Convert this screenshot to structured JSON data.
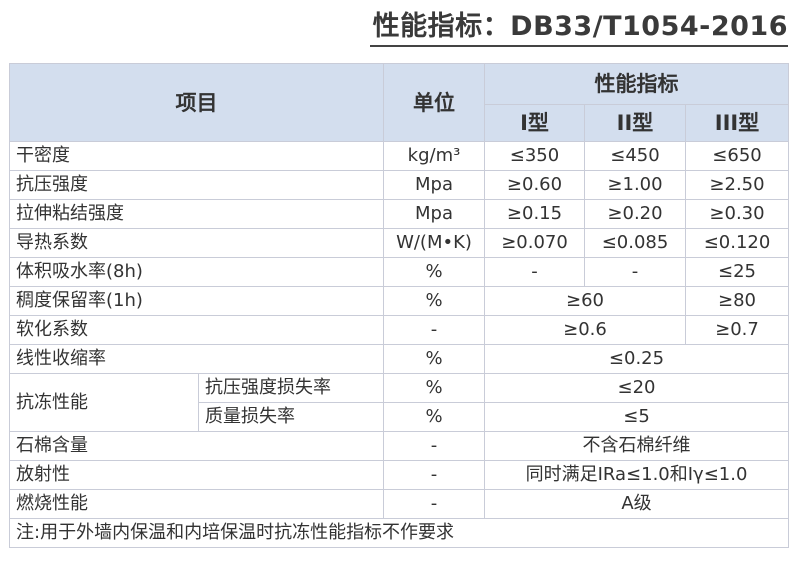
{
  "title": "性能指标：DB33/T1054-2016",
  "header": {
    "item": "项目",
    "unit": "单位",
    "perf": "性能指标",
    "types": [
      "I型",
      "II型",
      "III型"
    ]
  },
  "rows": [
    {
      "item": "干密度",
      "unit": "kg/m³",
      "vals": [
        "≤350",
        "≤450",
        "≤650"
      ]
    },
    {
      "item": "抗压强度",
      "unit": "Mpa",
      "vals": [
        "≥0.60",
        "≥1.00",
        "≥2.50"
      ]
    },
    {
      "item": "拉伸粘结强度",
      "unit": "Mpa",
      "vals": [
        "≥0.15",
        "≥0.20",
        "≥0.30"
      ]
    },
    {
      "item": "导热系数",
      "unit": "W/(M•K)",
      "vals": [
        "≥0.070",
        "≤0.085",
        "≤0.120"
      ]
    },
    {
      "item": "体积吸水率(8h)",
      "unit": "%",
      "vals": [
        "-",
        "-",
        "≤25"
      ]
    },
    {
      "item": "稠度保留率(1h)",
      "unit": "%",
      "merged": "≥60",
      "last": "≥80"
    },
    {
      "item": "软化系数",
      "unit": "-",
      "merged": "≥0.6",
      "last": "≥0.7"
    },
    {
      "item": "线性收缩率",
      "unit": "%",
      "all": "≤0.25"
    }
  ],
  "frost": {
    "item": "抗冻性能",
    "subs": [
      {
        "name": "抗压强度损失率",
        "unit": "%",
        "all": "≤20"
      },
      {
        "name": "质量损失率",
        "unit": "%",
        "all": "≤5"
      }
    ]
  },
  "rows2": [
    {
      "item": "石棉含量",
      "unit": "-",
      "all": "不含石棉纤维"
    },
    {
      "item": "放射性",
      "unit": "-",
      "all": "同时满足IRa≤1.0和Iγ≤1.0"
    },
    {
      "item": "燃烧性能",
      "unit": "-",
      "all": "A级"
    }
  ],
  "note": "注:用于外墙内保温和内培保温时抗冻性能指标不作要求",
  "colors": {
    "header_bg": "#d3deee",
    "border": "#c9ccd8"
  }
}
